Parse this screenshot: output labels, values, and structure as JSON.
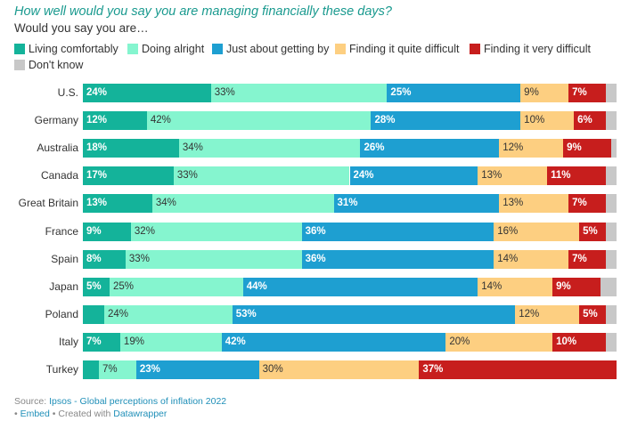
{
  "chart_data": {
    "type": "bar",
    "orientation": "horizontal",
    "stacked": true,
    "title": "How well would you say you are managing financially these days?",
    "subtitle": "Would you say you are…",
    "categories": [
      "U.S.",
      "Germany",
      "Australia",
      "Canada",
      "Great Britain",
      "France",
      "Spain",
      "Japan",
      "Poland",
      "Italy",
      "Turkey"
    ],
    "series": [
      {
        "name": "Living comfortably",
        "color": "#14b39a",
        "text_color": "#ffffff",
        "bold": true,
        "values": [
          24,
          12,
          18,
          17,
          13,
          9,
          8,
          5,
          4,
          7,
          3
        ],
        "labels": [
          "24%",
          "12%",
          "18%",
          "17%",
          "13%",
          "9%",
          "8%",
          "5%",
          "",
          "7%",
          ""
        ]
      },
      {
        "name": "Doing alright",
        "color": "#85f5cf",
        "text_color": "#333333",
        "bold": false,
        "values": [
          33,
          42,
          34,
          33,
          34,
          32,
          33,
          25,
          24,
          19,
          7
        ],
        "labels": [
          "33%",
          "42%",
          "34%",
          "33%",
          "34%",
          "32%",
          "33%",
          "25%",
          "24%",
          "19%",
          "7%"
        ]
      },
      {
        "name": "Just about getting by",
        "color": "#1e9fd1",
        "text_color": "#ffffff",
        "bold": true,
        "values": [
          25,
          28,
          26,
          24,
          31,
          36,
          36,
          44,
          53,
          42,
          23
        ],
        "labels": [
          "25%",
          "28%",
          "26%",
          "24%",
          "31%",
          "36%",
          "36%",
          "44%",
          "53%",
          "42%",
          "23%"
        ]
      },
      {
        "name": "Finding it quite difficult",
        "color": "#fdcf81",
        "text_color": "#333333",
        "bold": false,
        "values": [
          9,
          10,
          12,
          13,
          13,
          16,
          14,
          14,
          12,
          20,
          30
        ],
        "labels": [
          "9%",
          "10%",
          "12%",
          "13%",
          "13%",
          "16%",
          "14%",
          "14%",
          "12%",
          "20%",
          "30%"
        ]
      },
      {
        "name": "Finding it very difficult",
        "color": "#c71e1d",
        "text_color": "#ffffff",
        "bold": true,
        "values": [
          7,
          6,
          9,
          11,
          7,
          5,
          7,
          9,
          5,
          10,
          37
        ],
        "labels": [
          "7%",
          "6%",
          "9%",
          "11%",
          "7%",
          "5%",
          "7%",
          "9%",
          "5%",
          "10%",
          "37%"
        ]
      },
      {
        "name": "Don't know",
        "color": "#c8c8c8",
        "text_color": "#333333",
        "bold": false,
        "values": [
          2,
          2,
          1,
          2,
          2,
          2,
          2,
          3,
          2,
          2,
          0
        ],
        "labels": [
          "",
          "",
          "",
          "",
          "",
          "",
          "",
          "",
          "",
          "",
          ""
        ]
      }
    ],
    "xlim": [
      0,
      100
    ],
    "legend_position": "top"
  },
  "source": {
    "prefix": "Source: ",
    "text": "Ipsos - Global perceptions of inflation 2022"
  },
  "footer": {
    "bullet1": "• ",
    "embed": "Embed",
    "middle": " • Created with ",
    "tool": "Datawrapper"
  }
}
